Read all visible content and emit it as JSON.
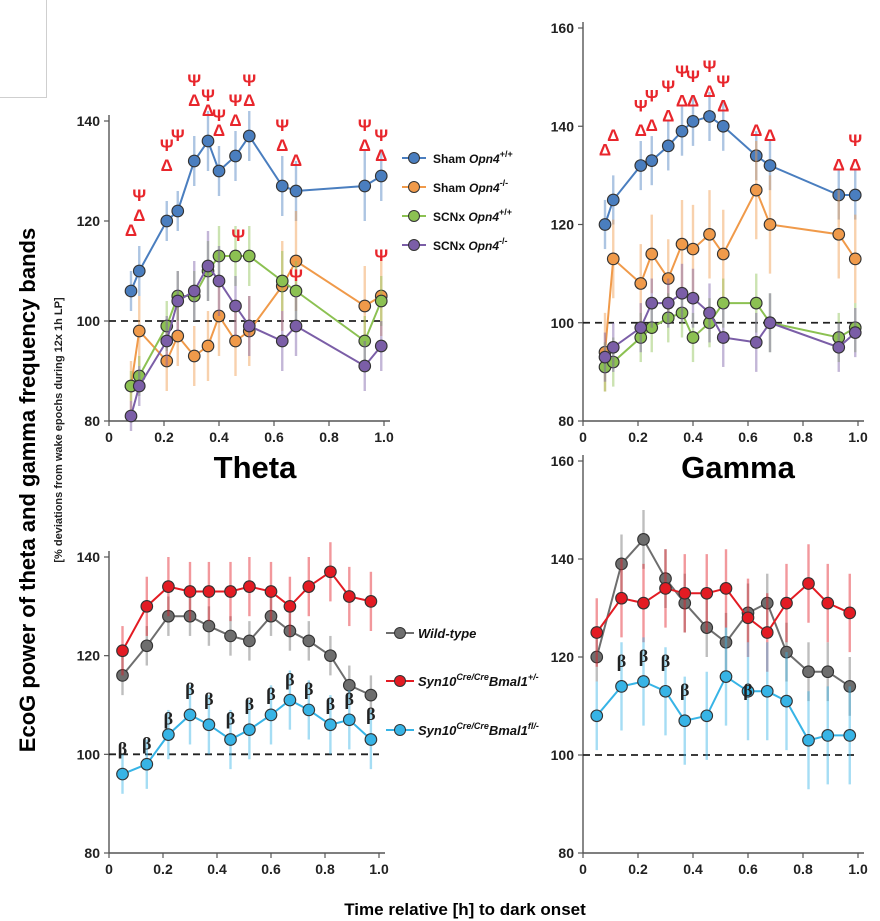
{
  "figure": {
    "ylabel": "EcoG power of theta and gamma frequency bands",
    "ylabel_sub": "[% deviations from wake epochs during 12x 1h LP]",
    "xlabel": "Time relative [h] to dark onset",
    "panel_titles": [
      "Theta",
      "Gamma"
    ]
  },
  "legend_top": [
    {
      "label": "Sham ",
      "italic": "Opn4",
      "sup": "+/+",
      "color": "#4a7ebf"
    },
    {
      "label": "Sham ",
      "italic": "Opn4",
      "sup": "-/-",
      "color": "#f09a4a"
    },
    {
      "label": "SCNx ",
      "italic": "Opn4",
      "sup": "+/+",
      "color": "#8cc152"
    },
    {
      "label": "SCNx ",
      "italic": "Opn4",
      "sup": "-/-",
      "color": "#7b5ea7"
    }
  ],
  "legend_bottom": [
    {
      "label": "Wild-type",
      "sup": "",
      "tail": "",
      "color": "#6e6e6e"
    },
    {
      "label": "Syn10",
      "sup": "Cre/Cre",
      "tail": "Bmal1",
      "sup2": "+/-",
      "color": "#e31b23"
    },
    {
      "label": "Syn10",
      "sup": "Cre/Cre",
      "tail": "Bmal1",
      "sup2": "fl/-",
      "color": "#37b4e6"
    }
  ],
  "chart_data": [
    {
      "type": "line",
      "title": "Theta",
      "xlim": [
        0,
        1.0
      ],
      "ylim": [
        80,
        140
      ],
      "xticks": [
        "0",
        "0.2",
        "0.4",
        "0.6",
        "0.8",
        "1.0"
      ],
      "yticks": [
        "80",
        "100",
        "120",
        "140"
      ],
      "reference_line": 100,
      "x": [
        0.08,
        0.11,
        0.21,
        0.25,
        0.31,
        0.36,
        0.4,
        0.46,
        0.51,
        0.63,
        0.68,
        0.93,
        0.99
      ],
      "series": [
        {
          "name": "Sham Opn4+/+",
          "color": "#4a7ebf",
          "values": [
            106,
            110,
            120,
            122,
            132,
            136,
            130,
            133,
            137,
            127,
            126,
            127,
            129
          ],
          "err": [
            4,
            5,
            4,
            4,
            5,
            6,
            5,
            5,
            5,
            6,
            6,
            7,
            5
          ]
        },
        {
          "name": "Sham Opn4-/-",
          "color": "#f09a4a",
          "values": [
            87,
            98,
            92,
            97,
            93,
            95,
            101,
            96,
            98,
            107,
            112,
            103,
            105
          ],
          "err": [
            5,
            7,
            6,
            6,
            6,
            7,
            8,
            7,
            7,
            9,
            10,
            8,
            8
          ]
        },
        {
          "name": "SCNx Opn4+/+",
          "color": "#8cc152",
          "values": [
            87,
            89,
            99,
            105,
            105,
            110,
            113,
            113,
            113,
            108,
            106,
            96,
            104
          ],
          "err": [
            3,
            4,
            5,
            5,
            5,
            6,
            6,
            6,
            6,
            6,
            6,
            5,
            5
          ]
        },
        {
          "name": "SCNx Opn4-/-",
          "color": "#7b5ea7",
          "values": [
            81,
            87,
            96,
            104,
            106,
            111,
            108,
            103,
            99,
            96,
            99,
            91,
            95
          ],
          "err": [
            3,
            4,
            5,
            6,
            6,
            7,
            7,
            6,
            6,
            6,
            6,
            5,
            5
          ]
        }
      ],
      "annotations": [
        {
          "x": 0.08,
          "y": 117,
          "text": "Δ"
        },
        {
          "x": 0.11,
          "y": 120,
          "text": "Δ"
        },
        {
          "x": 0.11,
          "y": 124,
          "text": "Ψ"
        },
        {
          "x": 0.21,
          "y": 130,
          "text": "Δ"
        },
        {
          "x": 0.21,
          "y": 134,
          "text": "Ψ"
        },
        {
          "x": 0.25,
          "y": 136,
          "text": "Ψ"
        },
        {
          "x": 0.31,
          "y": 143,
          "text": "Δ"
        },
        {
          "x": 0.31,
          "y": 147,
          "text": "Ψ"
        },
        {
          "x": 0.36,
          "y": 141,
          "text": "Δ"
        },
        {
          "x": 0.36,
          "y": 144,
          "text": "Ψ"
        },
        {
          "x": 0.4,
          "y": 137,
          "text": "Δ"
        },
        {
          "x": 0.4,
          "y": 140,
          "text": "Ψ"
        },
        {
          "x": 0.46,
          "y": 139,
          "text": "Δ"
        },
        {
          "x": 0.46,
          "y": 143,
          "text": "Ψ"
        },
        {
          "x": 0.51,
          "y": 143,
          "text": "Δ"
        },
        {
          "x": 0.51,
          "y": 147,
          "text": "Ψ"
        },
        {
          "x": 0.47,
          "y": 116,
          "text": "Ψ"
        },
        {
          "x": 0.63,
          "y": 134,
          "text": "Δ"
        },
        {
          "x": 0.63,
          "y": 138,
          "text": "Ψ"
        },
        {
          "x": 0.68,
          "y": 131,
          "text": "Δ"
        },
        {
          "x": 0.68,
          "y": 108,
          "text": "Ψ"
        },
        {
          "x": 0.93,
          "y": 134,
          "text": "Δ"
        },
        {
          "x": 0.93,
          "y": 138,
          "text": "Ψ"
        },
        {
          "x": 0.99,
          "y": 132,
          "text": "Δ"
        },
        {
          "x": 0.99,
          "y": 136,
          "text": "Ψ"
        },
        {
          "x": 0.99,
          "y": 112,
          "text": "Ψ"
        }
      ]
    },
    {
      "type": "line",
      "title": "Gamma",
      "xlim": [
        0,
        1.0
      ],
      "ylim": [
        80,
        160
      ],
      "xticks": [
        "0",
        "0.2",
        "0.4",
        "0.6",
        "0.8",
        "1.0"
      ],
      "yticks": [
        "80",
        "100",
        "120",
        "140",
        "160"
      ],
      "reference_line": 100,
      "x": [
        0.08,
        0.11,
        0.21,
        0.25,
        0.31,
        0.36,
        0.4,
        0.46,
        0.51,
        0.63,
        0.68,
        0.93,
        0.99
      ],
      "series": [
        {
          "name": "Sham Opn4+/+",
          "color": "#4a7ebf",
          "values": [
            120,
            125,
            132,
            133,
            136,
            139,
            141,
            142,
            140,
            134,
            132,
            126,
            126
          ],
          "err": [
            5,
            5,
            5,
            5,
            5,
            5,
            5,
            5,
            5,
            5,
            5,
            5,
            5
          ]
        },
        {
          "name": "Sham Opn4-/-",
          "color": "#f09a4a",
          "values": [
            94,
            113,
            108,
            114,
            109,
            116,
            115,
            118,
            114,
            127,
            120,
            118,
            113
          ],
          "err": [
            8,
            8,
            8,
            8,
            8,
            9,
            9,
            9,
            9,
            10,
            10,
            9,
            9
          ]
        },
        {
          "name": "SCNx Opn4+/+",
          "color": "#8cc152",
          "values": [
            91,
            92,
            97,
            99,
            101,
            102,
            97,
            100,
            104,
            104,
            100,
            97,
            99
          ],
          "err": [
            5,
            5,
            5,
            5,
            5,
            5,
            5,
            5,
            5,
            6,
            6,
            5,
            5
          ]
        },
        {
          "name": "SCNx Opn4-/-",
          "color": "#7b5ea7",
          "values": [
            93,
            95,
            99,
            104,
            104,
            106,
            105,
            102,
            97,
            96,
            100,
            95,
            98
          ],
          "err": [
            5,
            5,
            5,
            5,
            5,
            6,
            6,
            6,
            6,
            6,
            6,
            5,
            5
          ]
        }
      ],
      "annotations": [
        {
          "x": 0.08,
          "y": 134,
          "text": "Δ"
        },
        {
          "x": 0.11,
          "y": 137,
          "text": "Δ"
        },
        {
          "x": 0.21,
          "y": 138,
          "text": "Δ"
        },
        {
          "x": 0.21,
          "y": 143,
          "text": "Ψ"
        },
        {
          "x": 0.25,
          "y": 139,
          "text": "Δ"
        },
        {
          "x": 0.25,
          "y": 145,
          "text": "Ψ"
        },
        {
          "x": 0.31,
          "y": 141,
          "text": "Δ"
        },
        {
          "x": 0.31,
          "y": 147,
          "text": "Ψ"
        },
        {
          "x": 0.36,
          "y": 144,
          "text": "Δ"
        },
        {
          "x": 0.36,
          "y": 150,
          "text": "Ψ"
        },
        {
          "x": 0.4,
          "y": 144,
          "text": "Δ"
        },
        {
          "x": 0.4,
          "y": 149,
          "text": "Ψ"
        },
        {
          "x": 0.46,
          "y": 146,
          "text": "Δ"
        },
        {
          "x": 0.46,
          "y": 151,
          "text": "Ψ"
        },
        {
          "x": 0.51,
          "y": 143,
          "text": "Δ"
        },
        {
          "x": 0.51,
          "y": 148,
          "text": "Ψ"
        },
        {
          "x": 0.63,
          "y": 138,
          "text": "Δ"
        },
        {
          "x": 0.68,
          "y": 137,
          "text": "Δ"
        },
        {
          "x": 0.93,
          "y": 131,
          "text": "Δ"
        },
        {
          "x": 0.99,
          "y": 131,
          "text": "Δ"
        },
        {
          "x": 0.99,
          "y": 136,
          "text": "Ψ"
        }
      ]
    },
    {
      "type": "line",
      "title": "",
      "xlim": [
        0,
        1.0
      ],
      "ylim": [
        80,
        140
      ],
      "xticks": [
        "0",
        "0.2",
        "0.4",
        "0.6",
        "0.8",
        "1.0"
      ],
      "yticks": [
        "80",
        "100",
        "120",
        "140"
      ],
      "reference_line": 100,
      "x": [
        0.05,
        0.14,
        0.22,
        0.3,
        0.37,
        0.45,
        0.52,
        0.6,
        0.67,
        0.74,
        0.82,
        0.89,
        0.97
      ],
      "series": [
        {
          "name": "Wild-type",
          "color": "#6e6e6e",
          "values": [
            116,
            122,
            128,
            128,
            126,
            124,
            123,
            128,
            125,
            123,
            120,
            114,
            112
          ],
          "err": [
            4,
            4,
            4,
            4,
            4,
            4,
            4,
            4,
            4,
            4,
            4,
            4,
            4
          ]
        },
        {
          "name": "Syn10Cre/CreBmal1+/-",
          "color": "#e31b23",
          "values": [
            121,
            130,
            134,
            133,
            133,
            133,
            134,
            133,
            130,
            134,
            137,
            132,
            131
          ],
          "err": [
            5,
            6,
            6,
            6,
            6,
            6,
            6,
            6,
            6,
            6,
            6,
            6,
            6
          ]
        },
        {
          "name": "Syn10Cre/CreBmal1fl/-",
          "color": "#37b4e6",
          "values": [
            96,
            98,
            104,
            108,
            106,
            103,
            105,
            108,
            111,
            109,
            106,
            107,
            103
          ],
          "err": [
            4,
            5,
            5,
            6,
            6,
            6,
            6,
            6,
            6,
            6,
            6,
            6,
            6
          ]
        }
      ],
      "annotations": [
        {
          "x": 0.05,
          "y": 100,
          "text": "β"
        },
        {
          "x": 0.14,
          "y": 101,
          "text": "β"
        },
        {
          "x": 0.22,
          "y": 106,
          "text": "β"
        },
        {
          "x": 0.3,
          "y": 112,
          "text": "β"
        },
        {
          "x": 0.37,
          "y": 110,
          "text": "β"
        },
        {
          "x": 0.45,
          "y": 106,
          "text": "β"
        },
        {
          "x": 0.52,
          "y": 109,
          "text": "β"
        },
        {
          "x": 0.6,
          "y": 111,
          "text": "β"
        },
        {
          "x": 0.67,
          "y": 114,
          "text": "β"
        },
        {
          "x": 0.74,
          "y": 112,
          "text": "β"
        },
        {
          "x": 0.82,
          "y": 109,
          "text": "β"
        },
        {
          "x": 0.89,
          "y": 110,
          "text": "β"
        },
        {
          "x": 0.97,
          "y": 107,
          "text": "β"
        }
      ]
    },
    {
      "type": "line",
      "title": "",
      "xlim": [
        0,
        1.0
      ],
      "ylim": [
        80,
        160
      ],
      "xticks": [
        "0",
        "0.2",
        "0.4",
        "0.6",
        "0.8",
        "1.0"
      ],
      "yticks": [
        "80",
        "100",
        "120",
        "140",
        "160"
      ],
      "reference_line": 100,
      "x": [
        0.05,
        0.14,
        0.22,
        0.3,
        0.37,
        0.45,
        0.52,
        0.6,
        0.67,
        0.74,
        0.82,
        0.89,
        0.97
      ],
      "series": [
        {
          "name": "Wild-type",
          "color": "#6e6e6e",
          "values": [
            120,
            139,
            144,
            136,
            131,
            126,
            123,
            129,
            131,
            121,
            117,
            117,
            114
          ],
          "err": [
            5,
            6,
            6,
            6,
            6,
            6,
            6,
            6,
            6,
            6,
            6,
            6,
            6
          ]
        },
        {
          "name": "Syn10Cre/CreBmal1+/-",
          "color": "#e31b23",
          "values": [
            125,
            132,
            131,
            134,
            133,
            133,
            134,
            128,
            125,
            131,
            135,
            131,
            129
          ],
          "err": [
            7,
            8,
            8,
            8,
            8,
            8,
            8,
            8,
            8,
            8,
            8,
            8,
            8
          ]
        },
        {
          "name": "Syn10Cre/CreBmal1fl/-",
          "color": "#37b4e6",
          "values": [
            108,
            114,
            115,
            113,
            107,
            108,
            116,
            113,
            113,
            111,
            103,
            104,
            104
          ],
          "err": [
            7,
            9,
            9,
            9,
            9,
            9,
            10,
            10,
            10,
            10,
            10,
            10,
            10
          ]
        }
      ],
      "annotations": [
        {
          "x": 0.14,
          "y": 118,
          "text": "β"
        },
        {
          "x": 0.22,
          "y": 119,
          "text": "β"
        },
        {
          "x": 0.3,
          "y": 118,
          "text": "β"
        },
        {
          "x": 0.37,
          "y": 112,
          "text": "β"
        },
        {
          "x": 0.6,
          "y": 112,
          "text": "β"
        }
      ]
    }
  ]
}
